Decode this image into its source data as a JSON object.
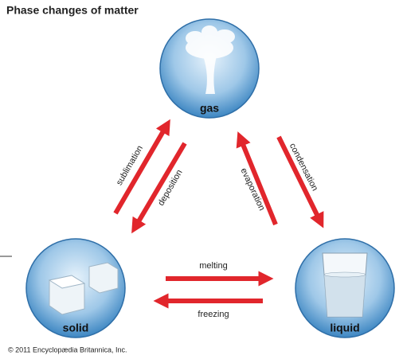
{
  "title": "Phase changes of matter",
  "nodes": [
    {
      "label": "gas"
    },
    {
      "label": "solid"
    },
    {
      "label": "liquid"
    }
  ],
  "processes": [
    {
      "label": "sublimation"
    },
    {
      "label": "deposition"
    },
    {
      "label": "evaporation"
    },
    {
      "label": "condensation"
    },
    {
      "label": "melting"
    },
    {
      "label": "freezing"
    }
  ],
  "copyright": "© 2011 Encyclopædia Britannica, Inc."
}
